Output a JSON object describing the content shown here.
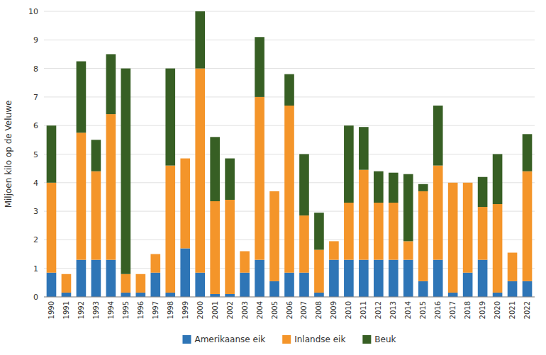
{
  "chart_data": {
    "type": "bar",
    "stacked": true,
    "categories": [
      "1990",
      "1991",
      "1992",
      "1993",
      "1994",
      "1995",
      "1996",
      "1997",
      "1998",
      "1999",
      "2000",
      "2001",
      "2002",
      "2003",
      "2004",
      "2005",
      "2006",
      "2007",
      "2008",
      "2009",
      "2010",
      "2011",
      "2012",
      "2013",
      "2014",
      "2015",
      "2016",
      "2017",
      "2018",
      "2019",
      "2020",
      "2021",
      "2022"
    ],
    "series": [
      {
        "name": "Amerikaanse eik",
        "color": "#2e75b6",
        "values": [
          0.85,
          0.15,
          1.3,
          1.3,
          1.3,
          0.15,
          0.15,
          0.85,
          0.15,
          1.7,
          0.85,
          0.1,
          0.1,
          0.85,
          1.3,
          0.55,
          0.85,
          0.85,
          0.15,
          1.3,
          1.3,
          1.3,
          1.3,
          1.3,
          1.3,
          0.55,
          1.3,
          0.15,
          0.85,
          1.3,
          0.15,
          0.55,
          0.55
        ]
      },
      {
        "name": "Inlandse eik",
        "color": "#f4952a",
        "values": [
          3.15,
          0.65,
          4.45,
          3.1,
          5.1,
          0.65,
          0.65,
          0.65,
          4.45,
          3.15,
          7.15,
          3.25,
          3.3,
          0.75,
          5.7,
          3.15,
          5.85,
          2.0,
          1.5,
          0.65,
          2.0,
          3.15,
          2.0,
          2.0,
          0.65,
          3.15,
          3.3,
          3.85,
          3.15,
          1.85,
          3.1,
          1.0,
          3.85
        ]
      },
      {
        "name": "Beuk",
        "color": "#375f24",
        "values": [
          2.0,
          0.0,
          2.5,
          1.1,
          2.1,
          7.2,
          0.0,
          0.0,
          3.4,
          0.0,
          2.0,
          2.25,
          1.45,
          0.0,
          2.1,
          0.0,
          1.1,
          2.15,
          1.3,
          0.0,
          2.7,
          1.5,
          1.1,
          1.05,
          2.35,
          0.25,
          2.1,
          0.0,
          0.0,
          1.05,
          1.75,
          0.0,
          1.3
        ]
      }
    ],
    "ylabel": "Miljoen kilo op de Veluwe",
    "ylim": [
      0,
      10
    ],
    "yticks": [
      0,
      1,
      2,
      3,
      4,
      5,
      6,
      7,
      8,
      9,
      10
    ],
    "grid": true,
    "legend": "bottom"
  }
}
